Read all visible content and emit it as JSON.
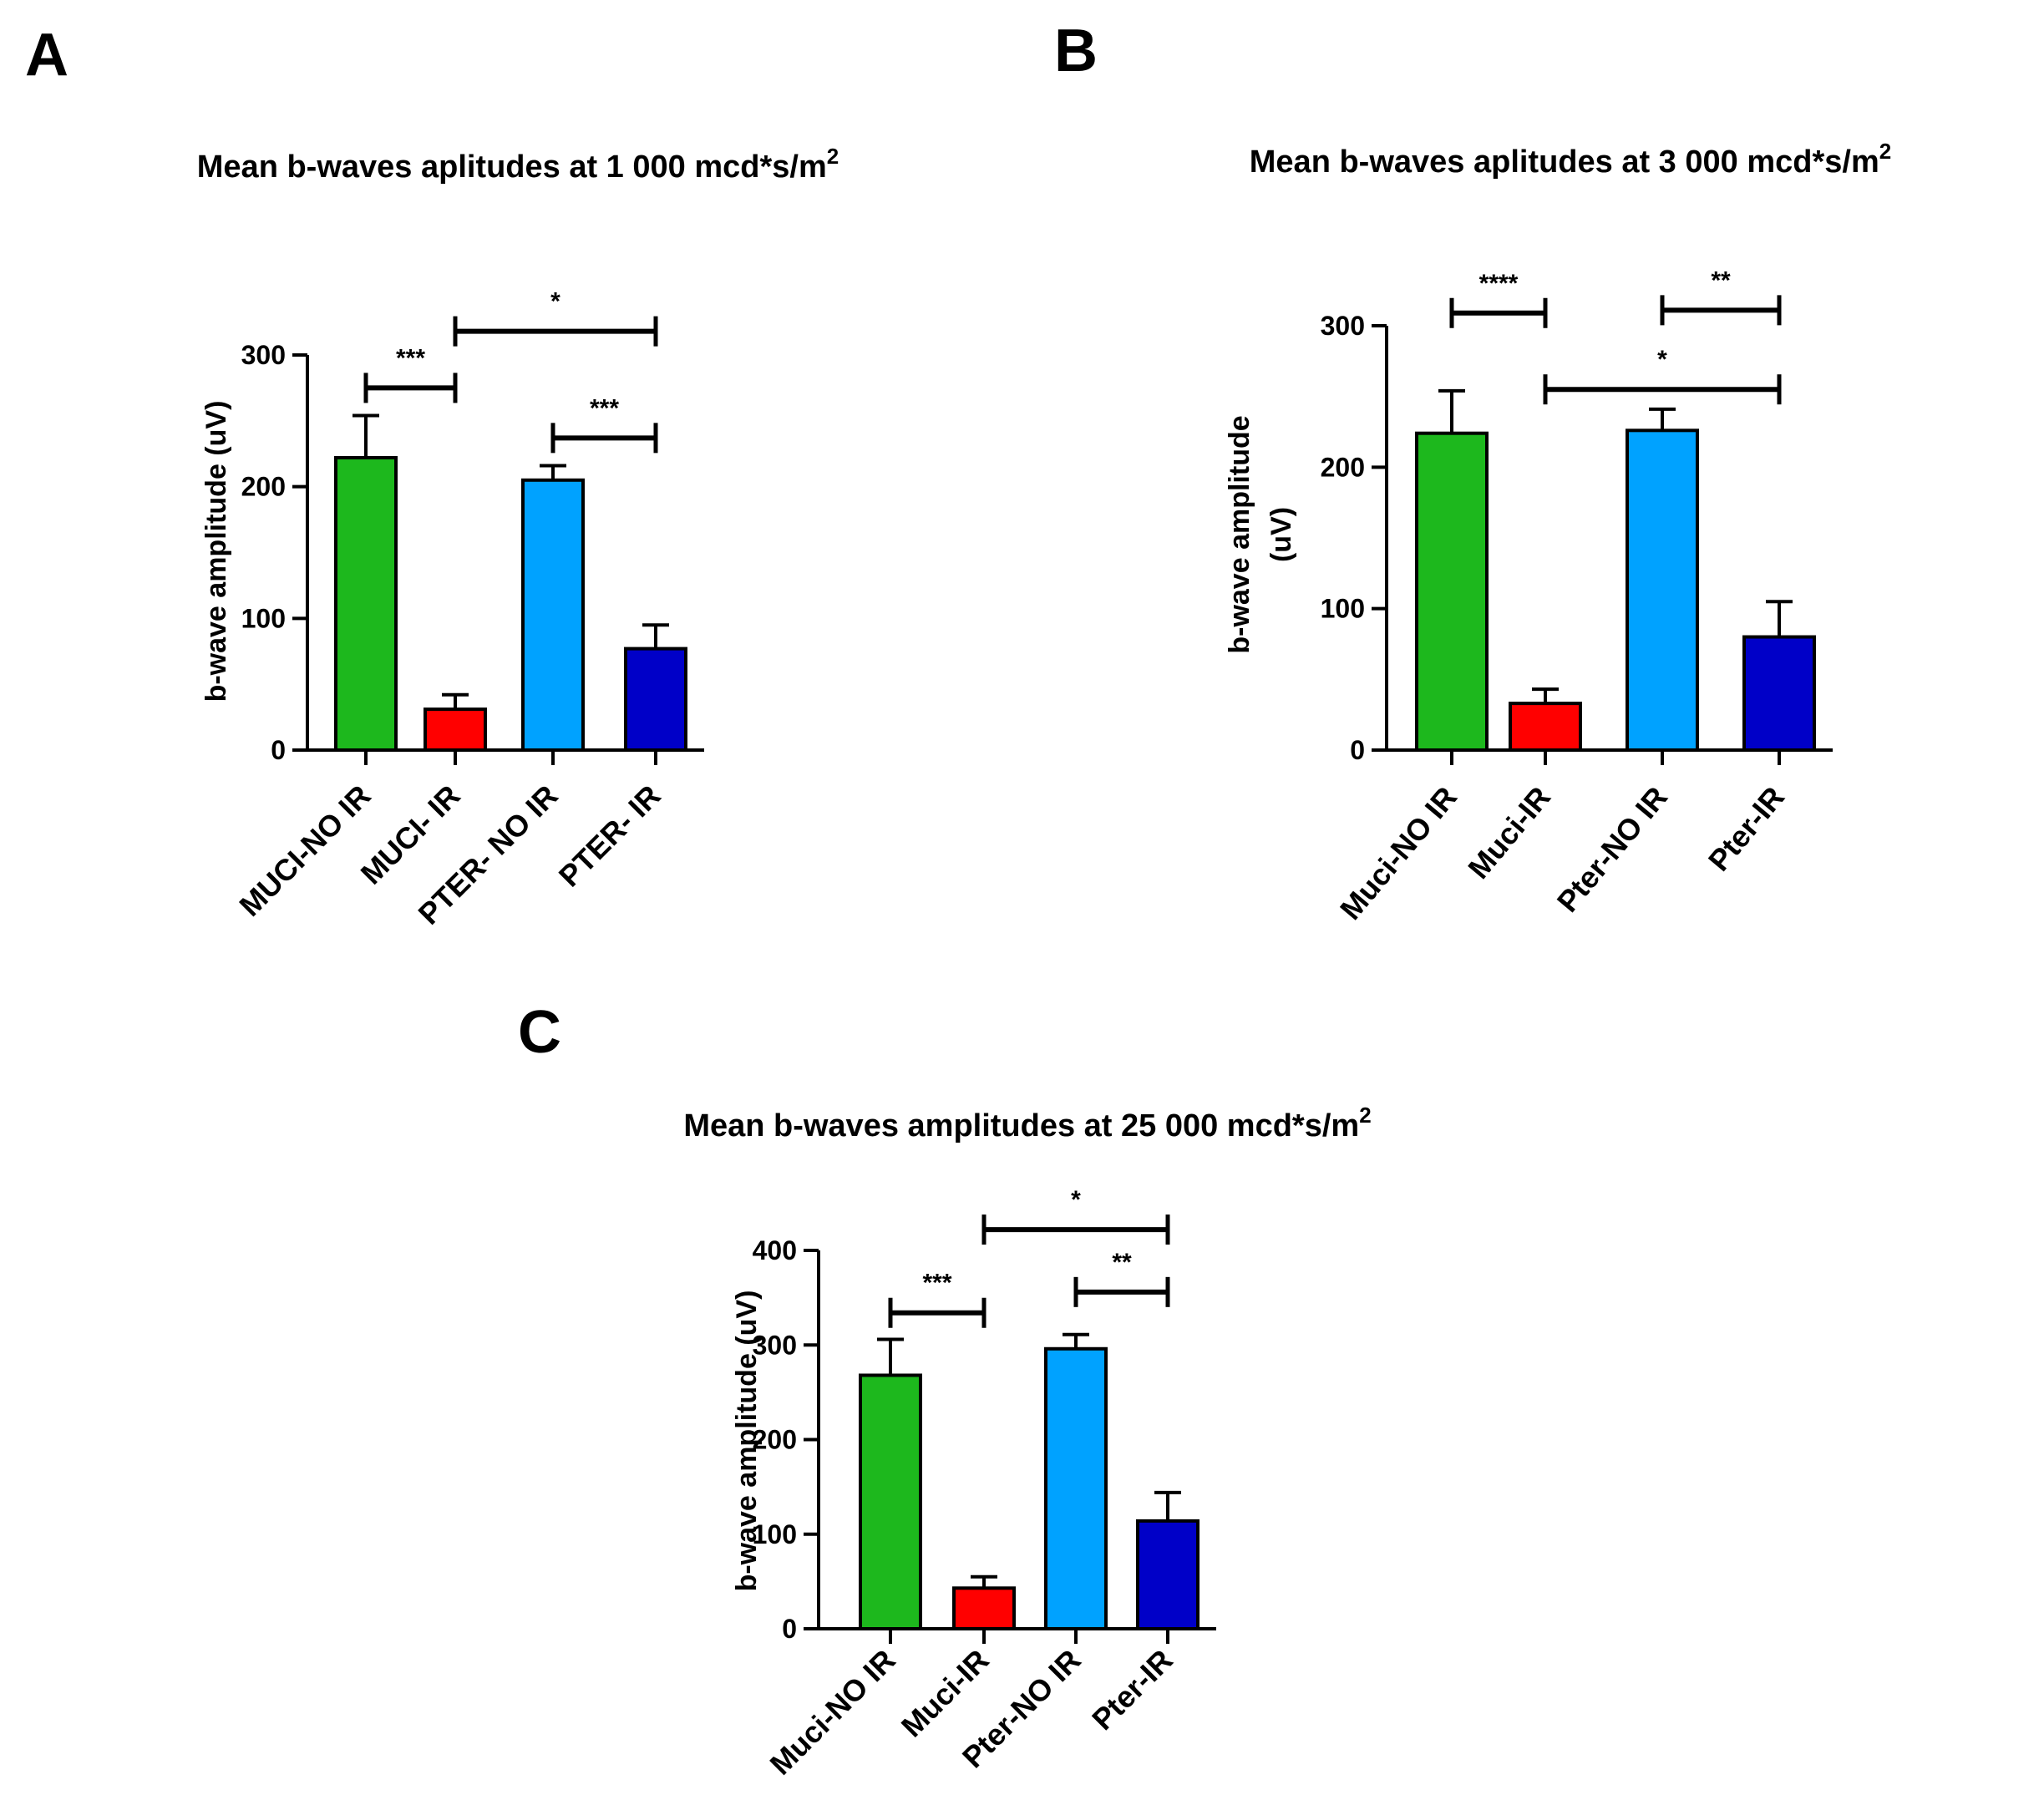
{
  "chart_data": [
    {
      "type": "bar",
      "panel": "A",
      "title": "Mean b-waves aplitudes at 1 000 mcd*s/m",
      "title_superscript": "2",
      "ylabel": "b-wave amplitude (uV)",
      "xlabel": "",
      "ylim": [
        0,
        300
      ],
      "yticks": [
        0,
        100,
        200,
        300
      ],
      "categories": [
        "MUCI-NO IR",
        "MUCI- IR",
        "PTER- NO IR",
        "PTER- IR"
      ],
      "values": [
        222,
        31,
        205,
        77
      ],
      "errors": [
        32,
        11,
        11,
        18
      ],
      "colors": [
        "#1DB81D",
        "#FF0000",
        "#00A2FF",
        "#0000C8"
      ],
      "significance": [
        {
          "from": 0,
          "to": 1,
          "label": "***",
          "y": 275
        },
        {
          "from": 2,
          "to": 3,
          "label": "***",
          "y": 237
        },
        {
          "from": 1,
          "to": 3,
          "label": "*",
          "y": 318
        }
      ]
    },
    {
      "type": "bar",
      "panel": "B",
      "title": "Mean b-waves aplitudes at 3 000 mcd*s/m",
      "title_superscript": "2",
      "ylabel": "b-wave amplitude",
      "ylabel2": "(uV)",
      "xlabel": "",
      "ylim": [
        0,
        300
      ],
      "yticks": [
        0,
        100,
        200,
        300
      ],
      "categories": [
        "Muci-NO IR",
        "Muci-IR",
        "Pter-NO IR",
        "Pter-IR"
      ],
      "values": [
        224,
        33,
        226,
        80
      ],
      "errors": [
        30,
        10,
        15,
        25
      ],
      "colors": [
        "#1DB81D",
        "#FF0000",
        "#00A2FF",
        "#0000C8"
      ],
      "significance": [
        {
          "from": 0,
          "to": 1,
          "label": "****",
          "y": 309
        },
        {
          "from": 2,
          "to": 3,
          "label": "**",
          "y": 311
        },
        {
          "from": 1,
          "to": 3,
          "label": "*",
          "y": 255
        }
      ]
    },
    {
      "type": "bar",
      "panel": "C",
      "title": "Mean b-waves amplitudes at 25 000 mcd*s/m",
      "title_superscript": "2",
      "ylabel": "b-wave  amplitude (uV)",
      "xlabel": "",
      "ylim": [
        0,
        400
      ],
      "yticks": [
        0,
        100,
        200,
        300,
        400
      ],
      "categories": [
        "Muci-NO IR",
        "Muci-IR",
        "Pter-NO IR",
        "Pter-IR"
      ],
      "values": [
        268,
        43,
        296,
        114
      ],
      "errors": [
        38,
        12,
        15,
        30
      ],
      "colors": [
        "#1DB81D",
        "#FF0000",
        "#00A2FF",
        "#0000C8"
      ],
      "significance": [
        {
          "from": 0,
          "to": 1,
          "label": "***",
          "y": 334
        },
        {
          "from": 2,
          "to": 3,
          "label": "**",
          "y": 356
        },
        {
          "from": 1,
          "to": 3,
          "label": "*",
          "y": 422
        }
      ]
    }
  ]
}
